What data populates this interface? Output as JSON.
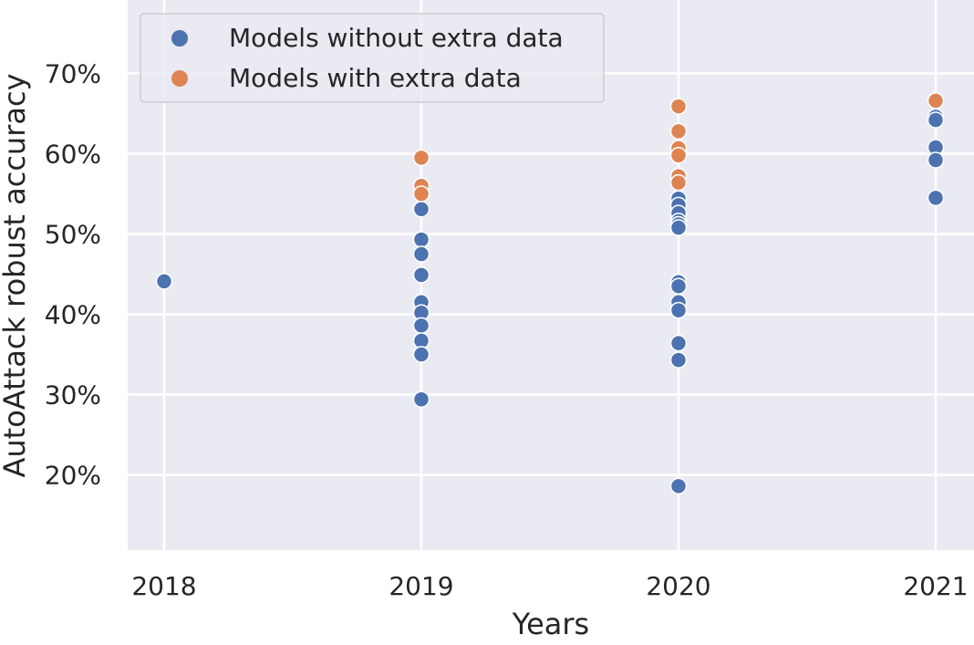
{
  "chart_data": {
    "type": "scatter",
    "title": "",
    "xlabel": "Years",
    "ylabel": "AutoAttack robust accuracy",
    "x_ticks": [
      "2018",
      "2019",
      "2020",
      "2021"
    ],
    "y_ticks": [
      "20%",
      "30%",
      "40%",
      "50%",
      "60%",
      "70%"
    ],
    "xlim": [
      2017.95,
      2021.15
    ],
    "ylim": [
      11,
      78
    ],
    "grid": true,
    "legend_position": "top-left",
    "series": [
      {
        "name": "Models without extra data",
        "color": "#4c72b0",
        "points": [
          {
            "x": 2018,
            "y": 44.1
          },
          {
            "x": 2019,
            "y": 53.1
          },
          {
            "x": 2019,
            "y": 49.3
          },
          {
            "x": 2019,
            "y": 47.5
          },
          {
            "x": 2019,
            "y": 44.9
          },
          {
            "x": 2019,
            "y": 41.5
          },
          {
            "x": 2019,
            "y": 40.2
          },
          {
            "x": 2019,
            "y": 38.6
          },
          {
            "x": 2019,
            "y": 36.7
          },
          {
            "x": 2019,
            "y": 35.0
          },
          {
            "x": 2019,
            "y": 29.4
          },
          {
            "x": 2020,
            "y": 54.4
          },
          {
            "x": 2020,
            "y": 53.6
          },
          {
            "x": 2020,
            "y": 52.6
          },
          {
            "x": 2020,
            "y": 51.6
          },
          {
            "x": 2020,
            "y": 51.2
          },
          {
            "x": 2020,
            "y": 50.8
          },
          {
            "x": 2020,
            "y": 44.0
          },
          {
            "x": 2020,
            "y": 43.5
          },
          {
            "x": 2020,
            "y": 41.5
          },
          {
            "x": 2020,
            "y": 40.5
          },
          {
            "x": 2020,
            "y": 36.4
          },
          {
            "x": 2020,
            "y": 34.3
          },
          {
            "x": 2020,
            "y": 18.6
          },
          {
            "x": 2021,
            "y": 64.6
          },
          {
            "x": 2021,
            "y": 64.2
          },
          {
            "x": 2021,
            "y": 60.8
          },
          {
            "x": 2021,
            "y": 59.2
          },
          {
            "x": 2021,
            "y": 54.5
          }
        ]
      },
      {
        "name": "Models with extra data",
        "color": "#dd8452",
        "points": [
          {
            "x": 2019,
            "y": 59.5
          },
          {
            "x": 2019,
            "y": 56.0
          },
          {
            "x": 2019,
            "y": 55.0
          },
          {
            "x": 2020,
            "y": 65.9
          },
          {
            "x": 2020,
            "y": 62.8
          },
          {
            "x": 2020,
            "y": 60.7
          },
          {
            "x": 2020,
            "y": 59.8
          },
          {
            "x": 2020,
            "y": 57.2
          },
          {
            "x": 2020,
            "y": 56.4
          },
          {
            "x": 2021,
            "y": 66.6
          }
        ]
      }
    ]
  }
}
